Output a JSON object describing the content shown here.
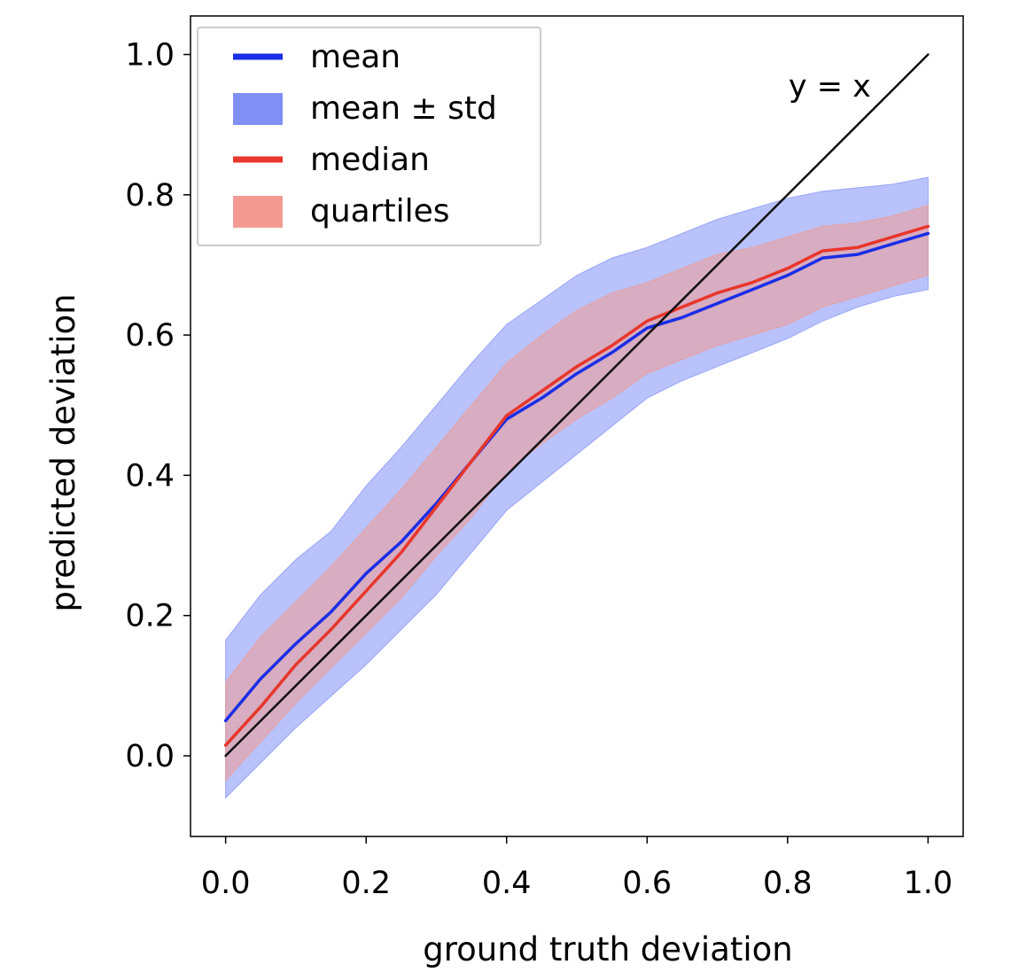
{
  "chart_data": {
    "type": "line",
    "title": "",
    "xlabel": "ground truth deviation",
    "ylabel": "predicted deviation",
    "xlim": [
      -0.05,
      1.05
    ],
    "ylim": [
      -0.115,
      1.055
    ],
    "x_ticks": [
      0.0,
      0.2,
      0.4,
      0.6,
      0.8,
      1.0
    ],
    "x_tick_labels": [
      "0.0",
      "0.2",
      "0.4",
      "0.6",
      "0.8",
      "1.0"
    ],
    "y_ticks": [
      0.0,
      0.2,
      0.4,
      0.6,
      0.8,
      1.0
    ],
    "y_tick_labels": [
      "0.0",
      "0.2",
      "0.4",
      "0.6",
      "0.8",
      "1.0"
    ],
    "grid": false,
    "legend_position": "top-left",
    "x": [
      0.0,
      0.05,
      0.1,
      0.15,
      0.2,
      0.25,
      0.3,
      0.35,
      0.4,
      0.45,
      0.5,
      0.55,
      0.6,
      0.65,
      0.7,
      0.75,
      0.8,
      0.85,
      0.9,
      0.95,
      1.0
    ],
    "series": [
      {
        "name": "mean",
        "kind": "line",
        "color": "#1a2ee6",
        "values": [
          0.05,
          0.11,
          0.16,
          0.205,
          0.26,
          0.305,
          0.36,
          0.42,
          0.48,
          0.51,
          0.545,
          0.575,
          0.61,
          0.625,
          0.645,
          0.665,
          0.685,
          0.71,
          0.715,
          0.73,
          0.745
        ]
      },
      {
        "name": "mean ± std",
        "kind": "band",
        "color": "#8090f5",
        "lower": [
          -0.06,
          -0.01,
          0.04,
          0.085,
          0.13,
          0.18,
          0.23,
          0.29,
          0.35,
          0.39,
          0.43,
          0.47,
          0.51,
          0.535,
          0.555,
          0.575,
          0.595,
          0.62,
          0.64,
          0.655,
          0.665
        ],
        "upper": [
          0.165,
          0.23,
          0.28,
          0.32,
          0.385,
          0.44,
          0.5,
          0.56,
          0.615,
          0.65,
          0.685,
          0.71,
          0.725,
          0.745,
          0.765,
          0.78,
          0.795,
          0.805,
          0.81,
          0.815,
          0.825
        ]
      },
      {
        "name": "median",
        "kind": "line",
        "color": "#e8362b",
        "values": [
          0.015,
          0.07,
          0.13,
          0.18,
          0.235,
          0.29,
          0.355,
          0.42,
          0.485,
          0.52,
          0.555,
          0.585,
          0.62,
          0.64,
          0.66,
          0.675,
          0.695,
          0.72,
          0.725,
          0.74,
          0.755
        ]
      },
      {
        "name": "quartiles",
        "kind": "band",
        "color": "#f29a92",
        "lower": [
          -0.035,
          0.02,
          0.075,
          0.125,
          0.175,
          0.225,
          0.285,
          0.34,
          0.405,
          0.445,
          0.48,
          0.51,
          0.545,
          0.565,
          0.585,
          0.6,
          0.615,
          0.64,
          0.655,
          0.67,
          0.685
        ],
        "upper": [
          0.105,
          0.17,
          0.22,
          0.27,
          0.325,
          0.38,
          0.44,
          0.5,
          0.56,
          0.6,
          0.635,
          0.66,
          0.675,
          0.695,
          0.715,
          0.725,
          0.74,
          0.755,
          0.76,
          0.77,
          0.785
        ]
      },
      {
        "name": "y = x",
        "kind": "reference-line",
        "color": "#111111",
        "values": [
          0.0,
          0.05,
          0.1,
          0.15,
          0.2,
          0.25,
          0.3,
          0.35,
          0.4,
          0.45,
          0.5,
          0.55,
          0.6,
          0.65,
          0.7,
          0.75,
          0.8,
          0.85,
          0.9,
          0.95,
          1.0
        ]
      }
    ],
    "annotations": [
      {
        "text": "y = x",
        "x": 0.86,
        "y": 0.955
      }
    ],
    "legend": [
      {
        "label": "mean",
        "kind": "line",
        "color": "#1a2ee6"
      },
      {
        "label": "mean ± std",
        "kind": "patch",
        "color": "#8090f5"
      },
      {
        "label": "median",
        "kind": "line",
        "color": "#e8362b"
      },
      {
        "label": "quartiles",
        "kind": "patch",
        "color": "#f29a92"
      }
    ]
  }
}
